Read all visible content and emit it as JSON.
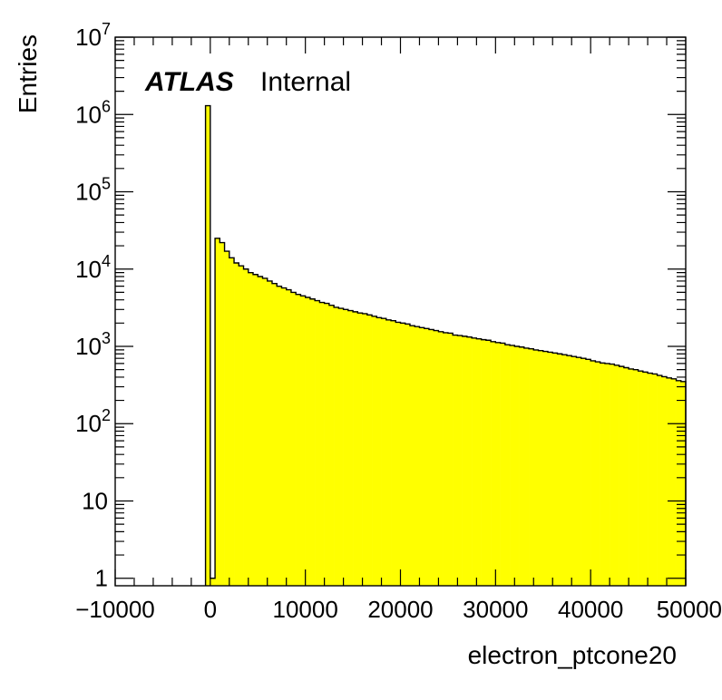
{
  "chart_data": {
    "type": "bar",
    "title": "",
    "xlabel": "electron_ptcone20",
    "ylabel": "Entries",
    "xlim": [
      -10000,
      50000
    ],
    "ylim": [
      0.8,
      10000000
    ],
    "y_scale": "log",
    "bin_width": 500,
    "fill_color": "#ffff00",
    "line_color": "#000000",
    "x_tick_labels": [
      "−10000",
      "0",
      "10000",
      "20000",
      "30000",
      "40000",
      "50000"
    ],
    "y_tick_labels": [
      {
        "base": "1",
        "exp": ""
      },
      {
        "base": "10",
        "exp": ""
      },
      {
        "base": "10",
        "exp": "2"
      },
      {
        "base": "10",
        "exp": "3"
      },
      {
        "base": "10",
        "exp": "4"
      },
      {
        "base": "10",
        "exp": "5"
      },
      {
        "base": "10",
        "exp": "6"
      },
      {
        "base": "10",
        "exp": "7"
      }
    ],
    "bins_low_edge": [
      -500,
      0,
      500,
      1000,
      1500,
      2000,
      2500,
      3000,
      3500,
      4000,
      4500,
      5000,
      5500,
      6000,
      6500,
      7000,
      7500,
      8000,
      8500,
      9000,
      9500,
      10000,
      10500,
      11000,
      11500,
      12000,
      12500,
      13000,
      13500,
      14000,
      14500,
      15000,
      15500,
      16000,
      16500,
      17000,
      17500,
      18000,
      18500,
      19000,
      19500,
      20000,
      20500,
      21000,
      21500,
      22000,
      22500,
      23000,
      23500,
      24000,
      24500,
      25000,
      25500,
      26000,
      26500,
      27000,
      27500,
      28000,
      28500,
      29000,
      29500,
      30000,
      30500,
      31000,
      31500,
      32000,
      32500,
      33000,
      33500,
      34000,
      34500,
      35000,
      35500,
      36000,
      36500,
      37000,
      37500,
      38000,
      38500,
      39000,
      39500,
      40000,
      40500,
      41000,
      41500,
      42000,
      42500,
      43000,
      43500,
      44000,
      44500,
      45000,
      45500,
      46000,
      46500,
      47000,
      47500,
      48000,
      48500,
      49000,
      49500
    ],
    "values": [
      1300000,
      1,
      25000,
      22000,
      17000,
      14000,
      12000,
      11000,
      10000,
      9000,
      8500,
      8000,
      7600,
      7000,
      6500,
      6000,
      5700,
      5400,
      5000,
      4700,
      4500,
      4300,
      4100,
      3900,
      3700,
      3600,
      3400,
      3200,
      3100,
      3000,
      2900,
      2800,
      2700,
      2650,
      2550,
      2450,
      2350,
      2300,
      2200,
      2150,
      2050,
      2000,
      1950,
      1850,
      1800,
      1750,
      1700,
      1650,
      1600,
      1550,
      1500,
      1480,
      1400,
      1380,
      1350,
      1320,
      1280,
      1250,
      1220,
      1200,
      1150,
      1120,
      1100,
      1050,
      1030,
      1000,
      980,
      950,
      930,
      900,
      880,
      860,
      840,
      820,
      800,
      780,
      760,
      740,
      720,
      700,
      680,
      650,
      630,
      610,
      600,
      590,
      570,
      550,
      530,
      510,
      500,
      480,
      465,
      450,
      440,
      420,
      405,
      390,
      380,
      360,
      350
    ]
  },
  "labels": {
    "atlas": "ATLAS",
    "internal": "Internal"
  }
}
